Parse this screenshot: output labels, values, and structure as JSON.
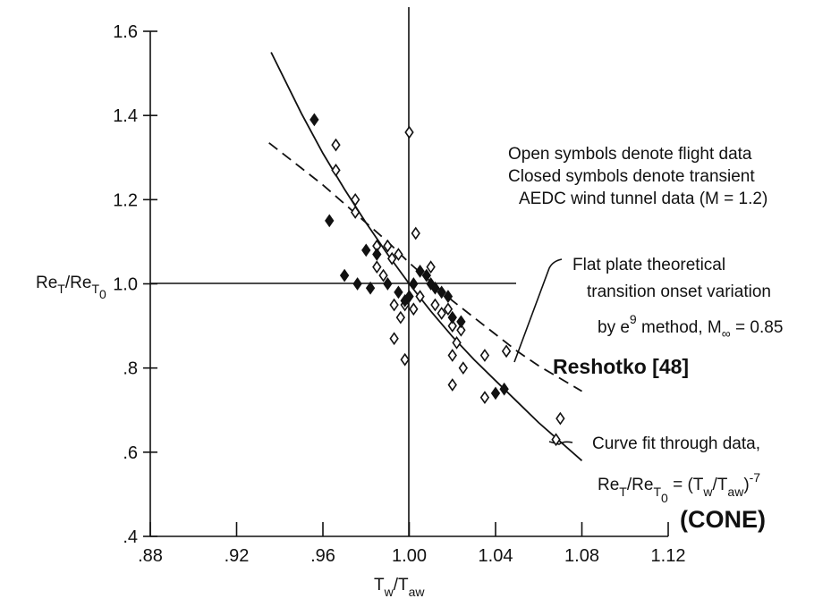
{
  "chart_data": {
    "type": "scatter",
    "xlabel": [
      "T",
      "w",
      "/T",
      "aw"
    ],
    "ylabel": [
      "Re",
      "T",
      "/Re",
      "T",
      "0"
    ],
    "xlim": [
      0.88,
      1.12
    ],
    "ylim": [
      0.4,
      1.6
    ],
    "xticks": [
      {
        "value": 0.88,
        "label": ".88"
      },
      {
        "value": 0.92,
        "label": ".92"
      },
      {
        "value": 0.96,
        "label": ".96"
      },
      {
        "value": 1.0,
        "label": "1.00"
      },
      1.04,
      1.08,
      1.12
    ],
    "yticks": [
      {
        "value": 0.4,
        "label": ".4"
      },
      {
        "value": 0.6,
        "label": ".6"
      },
      {
        "value": 0.8,
        "label": ".8"
      },
      {
        "value": 1.0,
        "label": "1.0"
      },
      1.2,
      1.4,
      1.6
    ],
    "annotations": {
      "legend_text": [
        "Open symbols denote flight data",
        "Closed symbols denote transient",
        "AEDC wind tunnel data (M = 1.2)"
      ],
      "theory": [
        "Flat plate theoretical",
        "transition onset variation"
      ],
      "theory_method": [
        "by e",
        "9",
        " method, M",
        "∞",
        " = 0.85"
      ],
      "reference": "Reshotko [48]",
      "fit": "Curve fit through data,",
      "fit_formula": [
        "Re",
        "T",
        "/Re",
        "T",
        "0",
        " = (T",
        "w",
        "/T",
        "aw",
        ")",
        "-7"
      ],
      "body": "(CONE)"
    },
    "series": [
      {
        "fill": "none",
        "color": "#111",
        "x": [
          0.966,
          0.966,
          0.975,
          0.975,
          1.0,
          1.003,
          0.985,
          0.99,
          0.992,
          0.995,
          0.985,
          0.988,
          0.993,
          0.996,
          0.998,
          1.002,
          1.005,
          1.01,
          1.012,
          1.015,
          1.018,
          1.02,
          1.022,
          1.024,
          1.025,
          0.993,
          0.998,
          1.02,
          1.02,
          1.035,
          1.035,
          1.045,
          1.068,
          1.07
        ],
        "values": [
          1.33,
          1.27,
          1.2,
          1.17,
          1.36,
          1.12,
          1.09,
          1.09,
          1.06,
          1.07,
          1.04,
          1.02,
          0.95,
          0.92,
          0.95,
          0.94,
          0.97,
          1.04,
          0.95,
          0.93,
          0.94,
          0.9,
          0.86,
          0.89,
          0.8,
          0.87,
          0.82,
          0.76,
          0.83,
          0.83,
          0.73,
          0.84,
          0.63,
          0.68
        ]
      },
      {
        "fill": "solid",
        "color": "#111",
        "x": [
          0.956,
          0.963,
          0.97,
          0.976,
          0.98,
          0.982,
          0.985,
          0.99,
          0.995,
          0.998,
          1.0,
          1.002,
          1.005,
          1.008,
          1.01,
          1.012,
          1.015,
          1.018,
          1.02,
          1.024,
          1.04,
          1.044
        ],
        "values": [
          1.39,
          1.15,
          1.02,
          1.0,
          1.08,
          0.99,
          1.07,
          1.0,
          0.98,
          0.96,
          0.97,
          1.0,
          1.03,
          1.02,
          1.0,
          0.99,
          0.98,
          0.97,
          0.92,
          0.91,
          0.74,
          0.75
        ]
      }
    ],
    "curves": [
      {
        "style": "solid",
        "x": [
          0.936,
          0.95,
          0.96,
          0.97,
          0.98,
          0.99,
          1.0,
          1.01,
          1.02,
          1.03,
          1.04,
          1.05,
          1.06,
          1.07,
          1.08
        ],
        "values": [
          1.55,
          1.405,
          1.31,
          1.225,
          1.145,
          1.07,
          1.0,
          0.935,
          0.875,
          0.82,
          0.77,
          0.72,
          0.67,
          0.625,
          0.58
        ]
      },
      {
        "style": "dashed",
        "x": [
          0.935,
          0.95,
          0.96,
          0.97,
          0.98,
          0.99,
          1.0,
          1.01,
          1.02,
          1.03,
          1.04,
          1.05,
          1.06,
          1.07,
          1.08
        ],
        "values": [
          1.335,
          1.275,
          1.235,
          1.19,
          1.145,
          1.1,
          1.05,
          1.005,
          0.96,
          0.92,
          0.88,
          0.84,
          0.805,
          0.775,
          0.745
        ]
      }
    ]
  }
}
